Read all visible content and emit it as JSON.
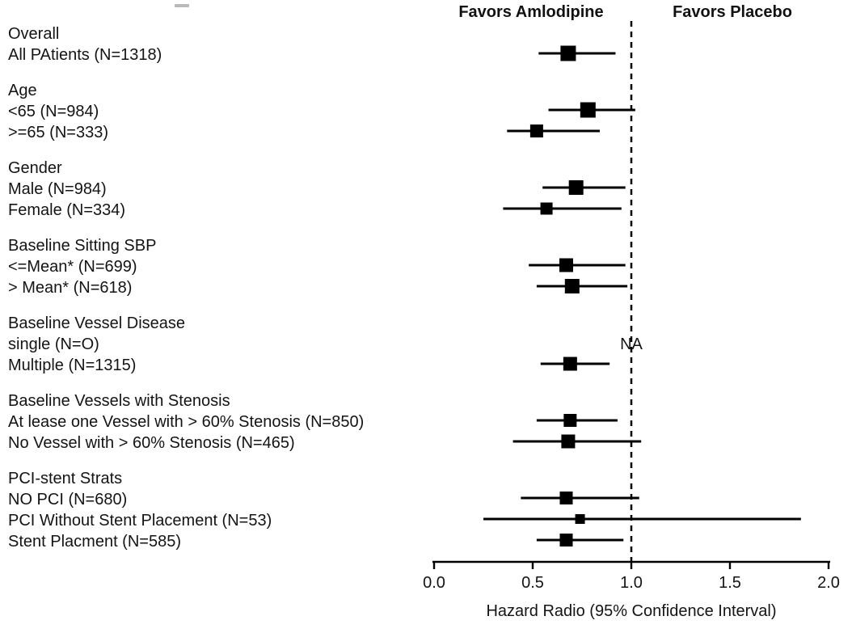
{
  "page": {
    "background": "#ffffff",
    "text_color": "#141414",
    "marker_color": "#000000"
  },
  "header": {
    "favors_left": "Favors Amlodipine",
    "favors_right": "Favors Placebo"
  },
  "chart_data": {
    "type": "forest",
    "xlabel": "Hazard Radio (95% Confidence Interval)",
    "xlim": [
      0.0,
      2.0
    ],
    "x_ticks": [
      "0.0",
      "0.5",
      "1.0",
      "1.5",
      "2.0"
    ],
    "reference_line": 1.0,
    "grid": false,
    "rows": [
      {
        "kind": "header",
        "label": "Overall"
      },
      {
        "kind": "data",
        "label": "All PAtients (N=1318)",
        "hr": 0.68,
        "ci_low": 0.53,
        "ci_high": 0.92,
        "size": 19
      },
      {
        "kind": "header",
        "label": "Age"
      },
      {
        "kind": "data",
        "label": "<65 (N=984)",
        "hr": 0.78,
        "ci_low": 0.58,
        "ci_high": 1.02,
        "size": 19
      },
      {
        "kind": "data",
        "label": ">=65 (N=333)",
        "hr": 0.52,
        "ci_low": 0.37,
        "ci_high": 0.84,
        "size": 16
      },
      {
        "kind": "header",
        "label": "Gender"
      },
      {
        "kind": "data",
        "label": "Male (N=984)",
        "hr": 0.72,
        "ci_low": 0.55,
        "ci_high": 0.97,
        "size": 18
      },
      {
        "kind": "data",
        "label": "Female (N=334)",
        "hr": 0.57,
        "ci_low": 0.35,
        "ci_high": 0.95,
        "size": 15
      },
      {
        "kind": "header",
        "label": "Baseline Sitting SBP"
      },
      {
        "kind": "data",
        "label": "<=Mean* (N=699)",
        "hr": 0.67,
        "ci_low": 0.48,
        "ci_high": 0.97,
        "size": 17
      },
      {
        "kind": "data",
        "label": "> Mean* (N=618)",
        "hr": 0.7,
        "ci_low": 0.52,
        "ci_high": 0.98,
        "size": 18
      },
      {
        "kind": "header",
        "label": "Baseline Vessel Disease"
      },
      {
        "kind": "data",
        "label": "single (N=O)",
        "na": true,
        "na_text": "NA"
      },
      {
        "kind": "data",
        "label": "Multiple (N=1315)",
        "hr": 0.69,
        "ci_low": 0.54,
        "ci_high": 0.89,
        "size": 17
      },
      {
        "kind": "header",
        "label": "Baseline Vessels with Stenosis"
      },
      {
        "kind": "data",
        "label": "At lease one Vessel with > 60% Stenosis (N=850)",
        "hr": 0.69,
        "ci_low": 0.52,
        "ci_high": 0.93,
        "size": 16
      },
      {
        "kind": "data",
        "label": "No Vessel with > 60% Stenosis (N=465)",
        "hr": 0.68,
        "ci_low": 0.4,
        "ci_high": 1.05,
        "size": 17
      },
      {
        "kind": "header",
        "label": "PCI-stent Strats"
      },
      {
        "kind": "data",
        "label": "NO PCI (N=680)",
        "hr": 0.67,
        "ci_low": 0.44,
        "ci_high": 1.04,
        "size": 16
      },
      {
        "kind": "data",
        "label": "PCI Without Stent Placement (N=53)",
        "hr": 0.74,
        "ci_low": 0.25,
        "ci_high": 1.86,
        "size": 12
      },
      {
        "kind": "data",
        "label": "Stent Placment (N=585)",
        "hr": 0.67,
        "ci_low": 0.52,
        "ci_high": 0.96,
        "size": 16
      }
    ]
  }
}
